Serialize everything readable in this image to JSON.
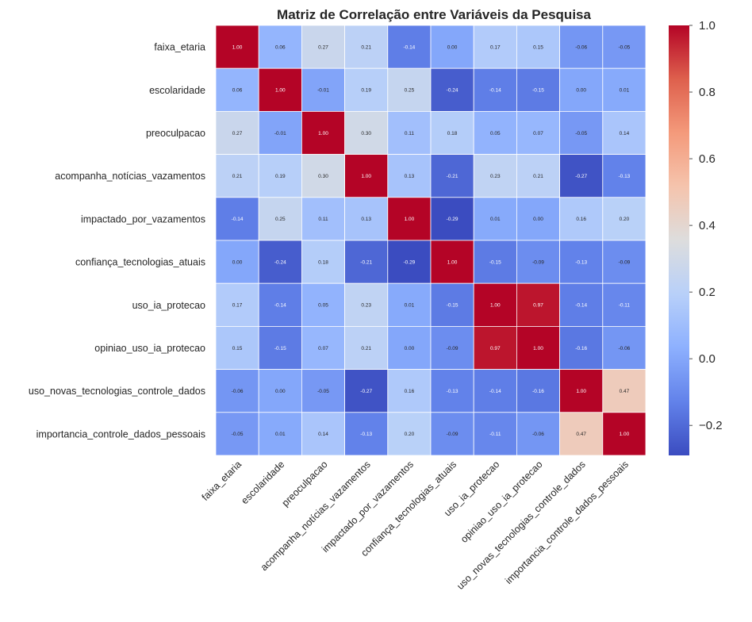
{
  "chart_data": {
    "type": "heatmap",
    "title": "Matriz de Correlação entre Variáveis da Pesquisa",
    "variables": [
      "faixa_etaria",
      "escolaridade",
      "preoculpacao",
      "acompanha_notícias_vazamentos",
      "impactado_por_vazamentos",
      "confiança_tecnologias_atuais",
      "uso_ia_protecao",
      "opiniao_uso_ia_protecao",
      "uso_novas_tecnologias_controle_dados",
      "importancia_controle_dados_pessoais"
    ],
    "values": [
      [
        1.0,
        0.06,
        0.27,
        0.21,
        -0.14,
        0.0,
        0.17,
        0.15,
        -0.06,
        -0.05
      ],
      [
        0.06,
        1.0,
        -0.01,
        0.19,
        0.25,
        -0.24,
        -0.14,
        -0.15,
        -0.0,
        0.01
      ],
      [
        0.27,
        -0.01,
        1.0,
        0.3,
        0.11,
        0.18,
        0.05,
        0.07,
        -0.05,
        0.14
      ],
      [
        0.21,
        0.19,
        0.3,
        1.0,
        0.13,
        -0.21,
        0.23,
        0.21,
        -0.27,
        -0.13
      ],
      [
        -0.14,
        0.25,
        0.11,
        0.13,
        1.0,
        -0.29,
        0.01,
        0.0,
        0.16,
        0.2
      ],
      [
        0.0,
        -0.24,
        0.18,
        -0.21,
        -0.29,
        1.0,
        -0.15,
        -0.09,
        -0.13,
        -0.09
      ],
      [
        0.17,
        -0.14,
        0.05,
        0.23,
        0.01,
        -0.15,
        1.0,
        0.97,
        -0.14,
        -0.11
      ],
      [
        0.15,
        -0.15,
        0.07,
        0.21,
        0.0,
        -0.09,
        0.97,
        1.0,
        -0.16,
        -0.06
      ],
      [
        -0.06,
        -0.0,
        -0.05,
        -0.27,
        0.16,
        -0.13,
        -0.14,
        -0.16,
        1.0,
        0.47
      ],
      [
        -0.05,
        0.01,
        0.14,
        -0.13,
        0.2,
        -0.09,
        -0.11,
        -0.06,
        0.47,
        1.0
      ]
    ],
    "value_format": "2 decimals",
    "colormap": "coolwarm",
    "vmin": -0.29,
    "vmax": 1.0,
    "colorbar_ticks": [
      1.0,
      0.8,
      0.6,
      0.4,
      0.2,
      0.0,
      -0.2
    ],
    "colorbar_tick_labels": [
      "1.0",
      "0.8",
      "0.6",
      "0.4",
      "0.2",
      "0.0",
      "−0.2"
    ],
    "grid": true
  }
}
